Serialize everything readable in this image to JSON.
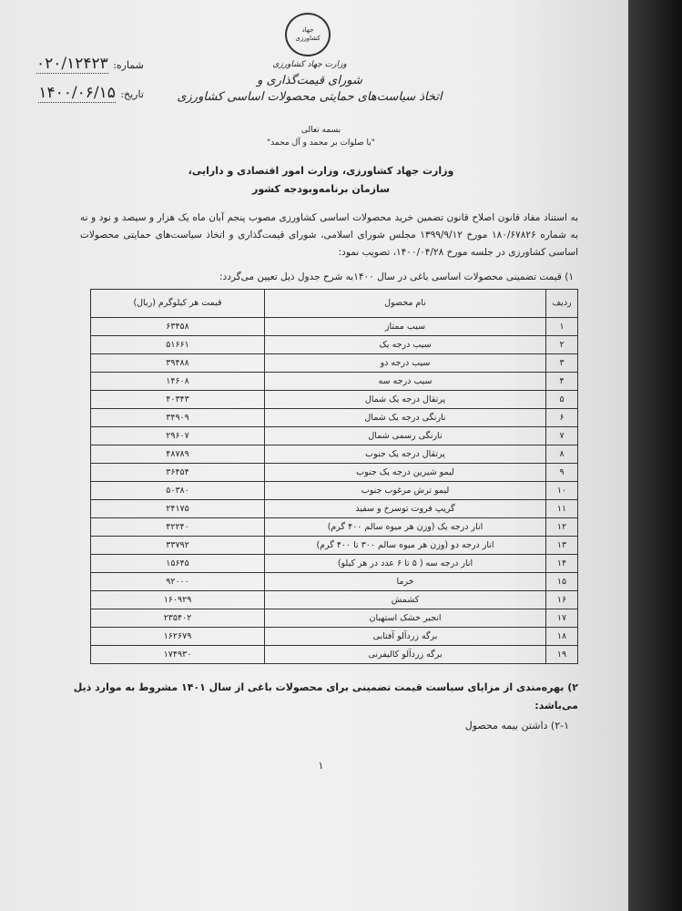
{
  "letterhead": {
    "logo_text": "جهاد کشاورزی",
    "lines": [
      "وزارت جهاد کشاورزی",
      "شورای قیمت‌گذاری و",
      "اتخاذ سیاست‌های حمایتی محصولات اساسی کشاورزی"
    ]
  },
  "reference": {
    "number_label": "شماره:",
    "number_value": "۰۲۰/۱۲۴۲۳",
    "date_label": "تاریخ:",
    "date_value": "۱۴۰۰/۰۶/۱۵"
  },
  "bismillah": "بسمه تعالی",
  "salawat": "\"با صلوات بر محمد و آل محمد\"",
  "addressees": [
    "وزارت جهاد کشاورزی، وزارت امور اقتصادی و دارایی،",
    "سازمان برنامه‌وبودجه کشور"
  ],
  "intro_paragraph": "به استناد مفاد قانون اصلاح قانون تضمین خرید محصولات اساسی کشاورزی مصوب پنجم آبان ماه یک هزار و سیصد و نود و نه به شماره ۱۸۰/۶۷۸۲۶ مورخ ۱۳۹۹/۹/۱۲ مجلس شورای اسلامی، شورای قیمت‌گذاری و اتخاذ سیاست‌های حمایتی محصولات اساسی کشاورزی در جلسه مورخ ۱۴۰۰/۰۴/۲۸، تصویب نمود:",
  "item1": "۱) قیمت تضمینی محصولات اساسی باغی در سال ۱۴۰۰به شرح جدول ذیل تعیین می‌گردد:",
  "table": {
    "headers": [
      "ردیف",
      "نام محصول",
      "قیمت هر کیلوگرم (ریال)"
    ],
    "rows": [
      [
        "۱",
        "سیب ممتاز",
        "۶۳۴۵۸"
      ],
      [
        "۲",
        "سیب درجه یک",
        "۵۱۶۶۱"
      ],
      [
        "۳",
        "سیب درجه دو",
        "۳۹۴۸۸"
      ],
      [
        "۴",
        "سیب درجه سه",
        "۱۴۶۰۸"
      ],
      [
        "۵",
        "پرتقال درجه یک شمال",
        "۴۰۳۴۳"
      ],
      [
        "۶",
        "نارنگی درجه یک شمال",
        "۳۴۹۰۹"
      ],
      [
        "۷",
        "نارنگی رسمی شمال",
        "۲۹۶۰۷"
      ],
      [
        "۸",
        "پرتقال درجه یک جنوب",
        "۴۸۷۸۹"
      ],
      [
        "۹",
        "لیمو شیرین درجه یک جنوب",
        "۳۶۴۵۴"
      ],
      [
        "۱۰",
        "لیمو ترش مرغوب جنوب",
        "۵۰۳۸۰"
      ],
      [
        "۱۱",
        "گریپ فروت توسرخ و سفید",
        "۲۴۱۷۵"
      ],
      [
        "۱۲",
        "انار درجه یک (وزن هر میوه سالم ۴۰۰ گرم)",
        "۴۲۲۴۰"
      ],
      [
        "۱۳",
        "انار درجه دو (وزن هر میوه سالم ۳۰۰ تا ۴۰۰ گرم)",
        "۳۳۷۹۲"
      ],
      [
        "۱۴",
        "انار درجه سه ( ۵ تا ۶ عدد در هر کیلو)",
        "۱۵۶۴۵"
      ],
      [
        "۱۵",
        "خرما",
        "۹۲۰۰۰"
      ],
      [
        "۱۶",
        "کشمش",
        "۱۶۰۹۲۹"
      ],
      [
        "۱۷",
        "انجیر خشک استهبان",
        "۲۳۵۴۰۲"
      ],
      [
        "۱۸",
        "برگه زردآلو آفتابی",
        "۱۶۲۶۷۹"
      ],
      [
        "۱۹",
        "برگه زردآلو کالیفرنی",
        "۱۷۴۹۳۰"
      ]
    ]
  },
  "item2": "۲) بهره‌مندی از مزایای سیاست قیمت تضمینی برای محصولات باغی از سال ۱۴۰۱ مشروط به موارد ذیل می‌باشد:",
  "item2_1": "۲-۱) داشتن بیمه محصول",
  "page_number": "۱"
}
